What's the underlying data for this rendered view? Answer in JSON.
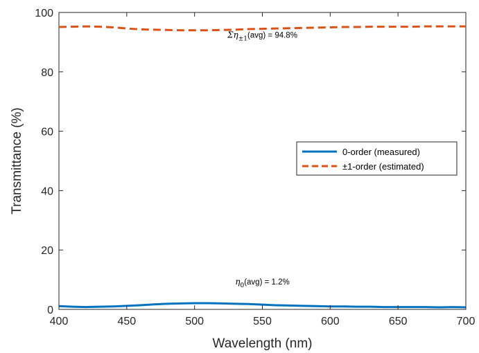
{
  "chart_data": {
    "type": "line",
    "title": "",
    "xlabel": "Wavelength (nm)",
    "ylabel": "Transmittance (%)",
    "xlim": [
      400,
      700
    ],
    "ylim": [
      0,
      100
    ],
    "xticks": [
      400,
      450,
      500,
      550,
      600,
      650,
      700
    ],
    "yticks": [
      0,
      20,
      40,
      60,
      80,
      100
    ],
    "grid": false,
    "legend_position": "center-right",
    "series": [
      {
        "name": "0-order (measured)",
        "color": "#0072BD",
        "style": "solid",
        "x": [
          400,
          410,
          420,
          430,
          440,
          450,
          460,
          470,
          480,
          490,
          500,
          510,
          520,
          530,
          540,
          550,
          560,
          570,
          580,
          590,
          600,
          610,
          620,
          630,
          640,
          650,
          660,
          670,
          680,
          690,
          700
        ],
        "y": [
          1.1,
          0.9,
          0.8,
          0.9,
          1.0,
          1.2,
          1.4,
          1.7,
          1.9,
          2.0,
          2.1,
          2.1,
          2.0,
          1.9,
          1.8,
          1.6,
          1.4,
          1.3,
          1.2,
          1.1,
          1.0,
          1.0,
          0.9,
          0.9,
          0.8,
          0.8,
          0.8,
          0.8,
          0.7,
          0.8,
          0.7
        ]
      },
      {
        "name": "±1-order (estimated)",
        "color": "#D95319",
        "style": "dashed",
        "x": [
          400,
          410,
          420,
          430,
          440,
          450,
          460,
          470,
          480,
          490,
          500,
          510,
          520,
          530,
          540,
          550,
          560,
          570,
          580,
          590,
          600,
          610,
          620,
          630,
          640,
          650,
          660,
          670,
          680,
          690,
          700
        ],
        "y": [
          95.1,
          95.2,
          95.3,
          95.2,
          95.0,
          94.6,
          94.3,
          94.2,
          94.1,
          94.0,
          94.0,
          94.0,
          94.1,
          94.2,
          94.4,
          94.5,
          94.6,
          94.7,
          94.8,
          94.9,
          95.0,
          95.1,
          95.1,
          95.2,
          95.2,
          95.2,
          95.2,
          95.3,
          95.3,
          95.3,
          95.3
        ]
      }
    ],
    "annotations": [
      {
        "id": "upper",
        "prefix": "Ση",
        "subscript": "±1",
        "suffix": "(avg) = 94.8%",
        "x": 550,
        "y": 91.5
      },
      {
        "id": "lower",
        "prefix": "η",
        "subscript": "0",
        "suffix": "(avg) = 1.2%",
        "x": 550,
        "y": 8.4
      }
    ]
  }
}
